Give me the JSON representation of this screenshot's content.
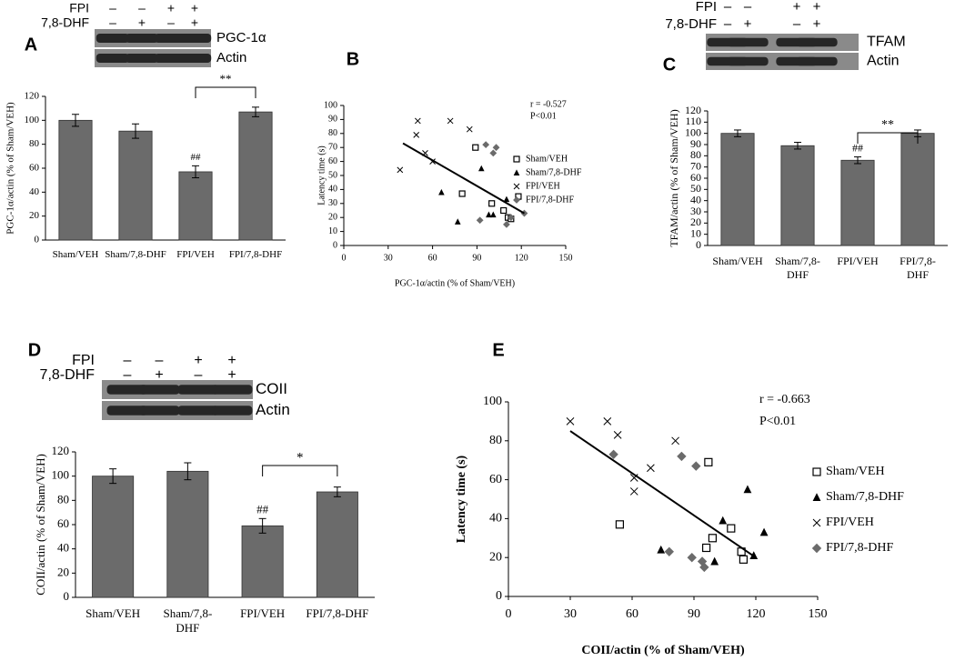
{
  "chart_data": [
    {
      "type": "bar",
      "panel_label": "A",
      "ylabel": "PGC-1α/actin (% of Sham/VEH)",
      "categories": [
        "Sham/VEH",
        "Sham/7,8-DHF",
        "FPI/VEH",
        "FPI/7,8-DHF"
      ],
      "values": [
        100,
        91,
        57,
        107
      ],
      "errors": [
        5,
        6,
        5,
        4
      ],
      "color": "#6b6b6b",
      "ylim": [
        0,
        120
      ],
      "yticks": [
        0,
        20,
        40,
        60,
        80,
        100,
        120
      ],
      "significance": [
        null,
        null,
        "##",
        null
      ],
      "bracket_label": "**",
      "blot": {
        "treatments": [
          {
            "label": "FPI",
            "signs": [
              "–",
              "–",
              "+",
              "+"
            ]
          },
          {
            "label": "7,8-DHF",
            "signs": [
              "–",
              "+",
              "–",
              "+"
            ]
          }
        ],
        "bands": [
          "PGC-1α",
          "Actin"
        ]
      }
    },
    {
      "type": "scatter",
      "panel_label": "B",
      "xlabel": "PGC-1α/actin (% of Sham/VEH)",
      "ylabel": "Latency time (s)",
      "xlim": [
        0,
        150
      ],
      "xticks": [
        0,
        30,
        60,
        90,
        120,
        150
      ],
      "ylim": [
        0,
        100
      ],
      "yticks": [
        0,
        10,
        20,
        30,
        40,
        50,
        60,
        70,
        80,
        90,
        100
      ],
      "annotations": [
        "r = -0.527",
        "P<0.01"
      ],
      "series": [
        {
          "name": "Sham/VEH",
          "color": "#000000",
          "marker": "square-open",
          "x": [
            89,
            80,
            100,
            108,
            111,
            113,
            118
          ],
          "values": [
            70,
            37,
            30,
            25,
            20,
            19,
            35
          ]
        },
        {
          "name": "Sham/7,8-DHF",
          "color": "#000000",
          "marker": "triangle",
          "x": [
            66,
            77,
            93,
            98,
            101,
            110
          ],
          "values": [
            38,
            17,
            55,
            22,
            22,
            33
          ]
        },
        {
          "name": "FPI/VEH",
          "color": "#000000",
          "marker": "x",
          "x": [
            38,
            50,
            49,
            55,
            60,
            72,
            85
          ],
          "values": [
            54,
            89,
            79,
            66,
            60,
            89,
            83
          ]
        },
        {
          "name": "FPI/7,8-DHF",
          "color": "#6b6b6b",
          "marker": "diamond",
          "x": [
            96,
            103,
            101,
            92,
            110,
            113,
            122
          ],
          "values": [
            72,
            70,
            66,
            18,
            15,
            20,
            23
          ]
        }
      ],
      "trendline": {
        "x": [
          40,
          122
        ],
        "y": [
          73,
          23
        ]
      }
    },
    {
      "type": "bar",
      "panel_label": "C",
      "ylabel": "TFAM/actin (% of Sham/VEH)",
      "categories": [
        "Sham/VEH",
        "Sham/7,8-DHF",
        "FPI/VEH",
        "FPI/7,8-DHF"
      ],
      "values": [
        100,
        89,
        76,
        100
      ],
      "errors": [
        3,
        3,
        3,
        3
      ],
      "color": "#6b6b6b",
      "ylim": [
        0,
        120
      ],
      "yticks": [
        0,
        10,
        20,
        30,
        40,
        50,
        60,
        70,
        80,
        90,
        100,
        110,
        120
      ],
      "significance": [
        null,
        null,
        "##",
        null
      ],
      "bracket_label": "**",
      "blot": {
        "treatments": [
          {
            "label": "FPI",
            "signs": [
              "–",
              "–",
              "+",
              "+"
            ]
          },
          {
            "label": "7,8-DHF",
            "signs": [
              "–",
              "+",
              "–",
              "+"
            ]
          }
        ],
        "bands": [
          "TFAM",
          "Actin"
        ]
      }
    },
    {
      "type": "bar",
      "panel_label": "D",
      "ylabel": "COII/actin (% of Sham/VEH)",
      "categories": [
        "Sham/VEH",
        "Sham/7,8-DHF",
        "FPI/VEH",
        "FPI/7,8-DHF"
      ],
      "values": [
        100,
        104,
        59,
        87
      ],
      "errors": [
        6,
        7,
        6,
        4
      ],
      "color": "#6b6b6b",
      "ylim": [
        0,
        120
      ],
      "yticks": [
        0,
        20,
        40,
        60,
        80,
        100,
        120
      ],
      "significance": [
        null,
        null,
        "##",
        null
      ],
      "bracket_label": "*",
      "blot": {
        "treatments": [
          {
            "label": "FPI",
            "signs": [
              "–",
              "–",
              "+",
              "+"
            ]
          },
          {
            "label": "7,8-DHF",
            "signs": [
              "–",
              "+",
              "–",
              "+"
            ]
          }
        ],
        "bands": [
          "COII",
          "Actin"
        ]
      }
    },
    {
      "type": "scatter",
      "panel_label": "E",
      "xlabel": "COII/actin (% of Sham/VEH)",
      "ylabel": "Latency time (s)",
      "xlim": [
        0,
        150
      ],
      "xticks": [
        0,
        30,
        60,
        90,
        120,
        150
      ],
      "ylim": [
        0,
        100
      ],
      "yticks": [
        0,
        20,
        40,
        60,
        80,
        100
      ],
      "annotations": [
        "r = -0.663",
        "P<0.01"
      ],
      "series": [
        {
          "name": "Sham/VEH",
          "color": "#000000",
          "marker": "square-open",
          "x": [
            54,
            97,
            108,
            96,
            99,
            113,
            114
          ],
          "values": [
            37,
            69,
            35,
            25,
            30,
            23,
            19
          ]
        },
        {
          "name": "Sham/7,8-DHF",
          "color": "#000000",
          "marker": "triangle",
          "x": [
            74,
            100,
            104,
            116,
            119,
            124
          ],
          "values": [
            24,
            18,
            39,
            55,
            21,
            33
          ]
        },
        {
          "name": "FPI/VEH",
          "color": "#000000",
          "marker": "x",
          "x": [
            30,
            48,
            53,
            61,
            61,
            69,
            81
          ],
          "values": [
            90,
            90,
            83,
            61,
            54,
            66,
            80
          ]
        },
        {
          "name": "FPI/7,8-DHF",
          "color": "#6b6b6b",
          "marker": "diamond",
          "x": [
            51,
            84,
            91,
            78,
            89,
            95,
            94
          ],
          "values": [
            73,
            72,
            67,
            23,
            20,
            15,
            18
          ]
        }
      ],
      "trendline": {
        "x": [
          30,
          120
        ],
        "y": [
          85,
          20
        ]
      }
    }
  ]
}
